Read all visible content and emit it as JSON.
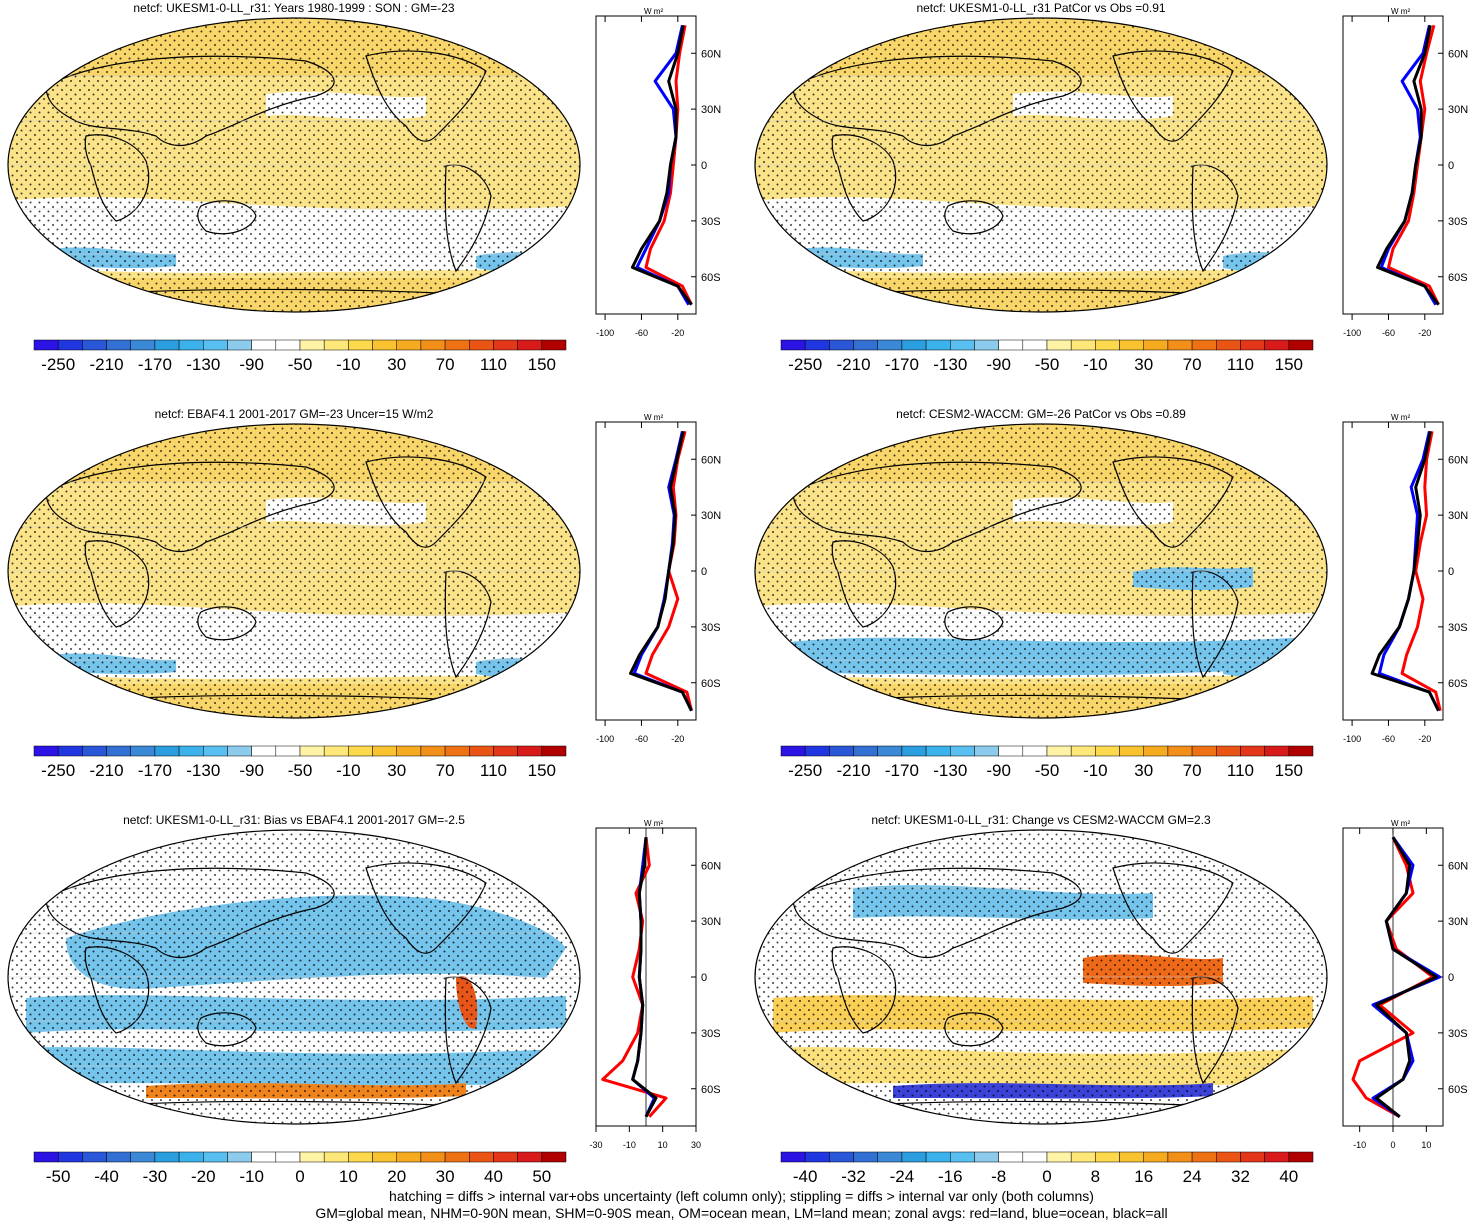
{
  "panels": [
    {
      "id": "p1",
      "title": "netcf: UKESM1-0-LL_r31: Years 1980-1999 : SON : GM=-23",
      "colorbar": {
        "ticks": [
          "-250",
          "-210",
          "-170",
          "-130",
          "-90",
          "-50",
          "-10",
          "30",
          "70",
          "110",
          "150"
        ],
        "colors": [
          "#2b13e6",
          "#2036e0",
          "#2a56d8",
          "#3270d4",
          "#3a88d6",
          "#2b9ee0",
          "#3cb2ec",
          "#58bff0",
          "#8ccbec",
          "#ffffff",
          "#ffffff",
          "#fff3a6",
          "#fde779",
          "#fcd84d",
          "#f8c230",
          "#f5aa20",
          "#f28f18",
          "#ee7214",
          "#ea5515",
          "#e43618",
          "#d81a1a",
          "#b00000"
        ]
      },
      "zonal": {
        "xticks": [
          "-100",
          "-60",
          "-20"
        ],
        "xmin": -110,
        "xmax": 0,
        "unit": "W m²"
      }
    },
    {
      "id": "p2",
      "title": "netcf: UKESM1-0-LL_r31 PatCor vs Obs =0.91",
      "colorbar": {
        "ticks": [
          "-250",
          "-210",
          "-170",
          "-130",
          "-90",
          "-50",
          "-10",
          "30",
          "70",
          "110",
          "150"
        ]
      },
      "zonal": {
        "xticks": [
          "-100",
          "-60",
          "-20"
        ],
        "xmin": -110,
        "xmax": 0,
        "unit": "W m²"
      }
    },
    {
      "id": "p3",
      "title": "netcf: EBAF4.1 2001-2017 GM=-23 Uncer=15 W/m2",
      "colorbar": {
        "ticks": [
          "-250",
          "-210",
          "-170",
          "-130",
          "-90",
          "-50",
          "-10",
          "30",
          "70",
          "110",
          "150"
        ]
      },
      "zonal": {
        "xticks": [
          "-100",
          "-60",
          "-20"
        ],
        "xmin": -110,
        "xmax": 0,
        "unit": "W m²"
      }
    },
    {
      "id": "p4",
      "title": "netcf: CESM2-WACCM: GM=-26 PatCor vs Obs =0.89",
      "colorbar": {
        "ticks": [
          "-250",
          "-210",
          "-170",
          "-130",
          "-90",
          "-50",
          "-10",
          "30",
          "70",
          "110",
          "150"
        ]
      },
      "zonal": {
        "xticks": [
          "-100",
          "-60",
          "-20"
        ],
        "xmin": -110,
        "xmax": 0,
        "unit": "W m²"
      }
    },
    {
      "id": "p5",
      "title": "netcf: UKESM1-0-LL_r31: Bias vs EBAF4.1 2001-2017  GM=-2.5",
      "colorbar": {
        "ticks": [
          "-50",
          "-40",
          "-30",
          "-20",
          "-10",
          "0",
          "10",
          "20",
          "30",
          "40",
          "50"
        ]
      },
      "zonal": {
        "xticks": [
          "-30",
          "-10",
          "10",
          "30"
        ],
        "xmin": -30,
        "xmax": 30,
        "unit": "W m²"
      }
    },
    {
      "id": "p6",
      "title": "netcf: UKESM1-0-LL_r31: Change vs CESM2-WACCM GM=2.3",
      "colorbar": {
        "ticks": [
          "-40",
          "-32",
          "-24",
          "-16",
          "-8",
          "0",
          "8",
          "16",
          "24",
          "32",
          "40"
        ]
      },
      "zonal": {
        "xticks": [
          "-10",
          "0",
          "10"
        ],
        "xmin": -15,
        "xmax": 15,
        "unit": "W m²"
      }
    }
  ],
  "lat_ticks": [
    "60N",
    "30N",
    "0",
    "30S",
    "60S"
  ],
  "footer": {
    "line1": "hatching = diffs > internal var+obs uncertainty (left column only); stippling = diffs > internal var only (both columns)",
    "line2": "GM=global mean, NHM=0-90N mean, SHM=0-90S mean, OM=ocean mean, LM=land mean; zonal avgs: red=land, blue=ocean, black=all"
  },
  "chart_data": [
    {
      "type": "map+zonal",
      "title": "netcf: UKESM1-0-LL_r31: Years 1980-1999 : SON : GM=-23",
      "global_mean": -23,
      "zonal_lat": [
        75,
        60,
        45,
        30,
        15,
        0,
        -15,
        -30,
        -45,
        -55,
        -65,
        -75
      ],
      "series": [
        {
          "name": "land",
          "color": "red",
          "values": [
            -12,
            -18,
            -22,
            -20,
            -22,
            -25,
            -28,
            -35,
            -50,
            -55,
            -15,
            -5
          ]
        },
        {
          "name": "ocean",
          "color": "blue",
          "values": [
            -15,
            -22,
            -45,
            -25,
            -22,
            -28,
            -30,
            -40,
            -55,
            -65,
            -20,
            -8
          ]
        },
        {
          "name": "all",
          "color": "black",
          "values": [
            -14,
            -20,
            -30,
            -22,
            -22,
            -28,
            -32,
            -40,
            -60,
            -70,
            -20,
            -5
          ]
        }
      ]
    },
    {
      "type": "map+zonal",
      "title": "netcf: UKESM1-0-LL_r31 PatCor vs Obs =0.91",
      "pattern_correlation": 0.91,
      "zonal_lat": [
        75,
        60,
        45,
        30,
        15,
        0,
        -15,
        -30,
        -45,
        -55,
        -65,
        -75
      ],
      "series": [
        {
          "name": "land",
          "color": "red",
          "values": [
            -10,
            -18,
            -25,
            -20,
            -24,
            -28,
            -32,
            -38,
            -55,
            -60,
            -15,
            -5
          ]
        },
        {
          "name": "ocean",
          "color": "blue",
          "values": [
            -15,
            -22,
            -45,
            -28,
            -25,
            -30,
            -34,
            -42,
            -60,
            -68,
            -20,
            -8
          ]
        },
        {
          "name": "all",
          "color": "black",
          "values": [
            -14,
            -20,
            -32,
            -24,
            -24,
            -30,
            -34,
            -42,
            -62,
            -72,
            -20,
            -5
          ]
        }
      ]
    },
    {
      "type": "map+zonal",
      "title": "netcf: EBAF4.1 2001-2017 GM=-23 Uncer=15 W/m2",
      "global_mean": -23,
      "uncertainty": 15,
      "zonal_lat": [
        75,
        60,
        45,
        30,
        15,
        0,
        -15,
        -30,
        -45,
        -55,
        -65,
        -75
      ],
      "series": [
        {
          "name": "land",
          "color": "red",
          "values": [
            -12,
            -20,
            -25,
            -22,
            -24,
            -30,
            -20,
            -30,
            -48,
            -55,
            -10,
            -5
          ]
        },
        {
          "name": "ocean",
          "color": "blue",
          "values": [
            -15,
            -22,
            -30,
            -24,
            -26,
            -30,
            -35,
            -42,
            -60,
            -68,
            -15,
            -5
          ]
        },
        {
          "name": "all",
          "color": "black",
          "values": [
            -14,
            -21,
            -28,
            -23,
            -25,
            -30,
            -34,
            -42,
            -62,
            -72,
            -15,
            -5
          ]
        }
      ]
    },
    {
      "type": "map+zonal",
      "title": "netcf: CESM2-WACCM: GM=-26 PatCor vs Obs =0.89",
      "global_mean": -26,
      "pattern_correlation": 0.89,
      "zonal_lat": [
        75,
        60,
        45,
        30,
        15,
        0,
        -15,
        -30,
        -45,
        -55,
        -65,
        -75
      ],
      "series": [
        {
          "name": "land",
          "color": "red",
          "values": [
            -12,
            -18,
            -20,
            -18,
            -25,
            -30,
            -22,
            -28,
            -40,
            -45,
            -8,
            -3
          ]
        },
        {
          "name": "ocean",
          "color": "blue",
          "values": [
            -15,
            -22,
            -35,
            -28,
            -30,
            -32,
            -38,
            -48,
            -65,
            -70,
            -15,
            -5
          ]
        },
        {
          "name": "all",
          "color": "black",
          "values": [
            -14,
            -20,
            -30,
            -25,
            -28,
            -32,
            -38,
            -48,
            -70,
            -78,
            -15,
            -5
          ]
        }
      ]
    },
    {
      "type": "map+zonal",
      "title": "netcf: UKESM1-0-LL_r31: Bias vs EBAF4.1 2001-2017  GM=-2.5",
      "global_mean": -2.5,
      "zonal_lat": [
        75,
        60,
        45,
        30,
        15,
        0,
        -15,
        -30,
        -45,
        -55,
        -65,
        -75
      ],
      "series": [
        {
          "name": "land",
          "color": "red",
          "values": [
            0,
            2,
            -6,
            -2,
            -4,
            -8,
            -2,
            -5,
            -14,
            -26,
            12,
            2
          ]
        },
        {
          "name": "ocean",
          "color": "blue",
          "values": [
            0,
            -2,
            -4,
            -3,
            -3,
            -4,
            -2,
            -3,
            -5,
            -8,
            5,
            0
          ]
        },
        {
          "name": "all",
          "color": "black",
          "values": [
            0,
            -1,
            -4,
            -3,
            -3,
            -4,
            -2,
            -3,
            -5,
            -8,
            6,
            0
          ]
        }
      ]
    },
    {
      "type": "map+zonal",
      "title": "netcf: UKESM1-0-LL_r31: Change vs CESM2-WACCM GM=2.3",
      "global_mean": 2.3,
      "zonal_lat": [
        75,
        60,
        45,
        30,
        15,
        0,
        -15,
        -30,
        -45,
        -55,
        -65,
        -75
      ],
      "series": [
        {
          "name": "land",
          "color": "red",
          "values": [
            0,
            4,
            6,
            -2,
            1,
            12,
            -4,
            6,
            -10,
            -12,
            -8,
            2
          ]
        },
        {
          "name": "ocean",
          "color": "blue",
          "values": [
            0,
            6,
            4,
            -2,
            0,
            14,
            -6,
            4,
            6,
            3,
            -6,
            2
          ]
        },
        {
          "name": "all",
          "color": "black",
          "values": [
            0,
            5,
            4,
            -2,
            0,
            13,
            -5,
            4,
            5,
            3,
            -5,
            2
          ]
        }
      ]
    }
  ]
}
